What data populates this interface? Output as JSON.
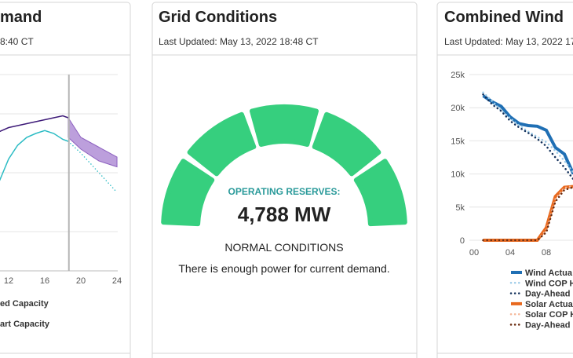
{
  "left": {
    "title": "mand",
    "updated": "8:40 CT",
    "chart": {
      "x": [
        11,
        12,
        13,
        14,
        15,
        16,
        17,
        18,
        18.6
      ],
      "demand": {
        "color": "#3d1a78",
        "values": [
          71,
          73,
          74,
          75,
          76,
          77,
          78,
          79,
          78
        ]
      },
      "capacity": {
        "color": "#2cbcc4",
        "values": [
          46,
          57,
          64,
          68,
          70,
          71.5,
          70,
          67,
          66
        ]
      },
      "forecast_x": [
        18.6,
        20,
        22,
        24
      ],
      "forecast": {
        "color": "#2cbcc4",
        "values": [
          66,
          60,
          50,
          40
        ]
      },
      "band": {
        "color": "#a57fd0",
        "high": [
          78,
          68,
          63,
          58
        ],
        "low": [
          68,
          62,
          56,
          53
        ]
      },
      "now": 18.67,
      "xlim": [
        11.04,
        24.3
      ],
      "ylim": [
        0,
        100
      ],
      "xticks": [
        12,
        16,
        20,
        24
      ]
    },
    "legend": [
      "ed Capacity",
      "art Capacity"
    ]
  },
  "center": {
    "title": "Grid Conditions",
    "updated": "Last Updated: May 13, 2022 18:48 CT",
    "label": "OPERATING RESERVES:",
    "value": "4,788 MW",
    "status": "NORMAL CONDITIONS",
    "message": "There is enough power for current demand."
  },
  "right": {
    "title": "Combined Wind",
    "updated": "Last Updated: May 13, 2022 17",
    "chart": {
      "x": [
        1,
        2,
        3,
        4,
        5,
        6,
        7,
        8,
        9,
        10,
        11
      ],
      "xlim": [
        0,
        12
      ],
      "ylim": [
        0,
        25000
      ],
      "yticks": [
        {
          "value": 0,
          "label": "0"
        },
        {
          "value": 5000,
          "label": "5k"
        },
        {
          "value": 10000,
          "label": "10k"
        },
        {
          "value": 15000,
          "label": "15k"
        },
        {
          "value": 20000,
          "label": "20k"
        },
        {
          "value": 25000,
          "label": "25k"
        }
      ],
      "xticks": [
        {
          "value": 0,
          "label": "00"
        },
        {
          "value": 4,
          "label": "04"
        },
        {
          "value": 8,
          "label": "08"
        }
      ],
      "series": [
        {
          "name": "Wind Actua",
          "color": "#1f6fb4",
          "dotted": false,
          "values": [
            21800,
            20900,
            20200,
            18600,
            17600,
            17300,
            17200,
            16600,
            14000,
            13000,
            10000
          ]
        },
        {
          "name": "Wind COP H",
          "color": "#9ccbe8",
          "dotted": true,
          "values": [
            22300,
            21000,
            19600,
            18400,
            17300,
            16400,
            15600,
            14800,
            13500,
            12000,
            10200
          ]
        },
        {
          "name": "Day-Ahead",
          "color": "#13315c",
          "dotted": true,
          "values": [
            22000,
            20500,
            19500,
            18000,
            17000,
            16200,
            15300,
            14200,
            12500,
            11000,
            9200
          ]
        },
        {
          "name": "Solar Actua",
          "color": "#e8691e",
          "dotted": false,
          "values": [
            0,
            0,
            0,
            0,
            0,
            0,
            0,
            1900,
            6600,
            8000,
            8100
          ]
        },
        {
          "name": "Solar COP H",
          "color": "#f6b89a",
          "dotted": true,
          "values": [
            0,
            0,
            0,
            0,
            0,
            0,
            0,
            1500,
            6200,
            7900,
            8200
          ]
        },
        {
          "name": "Day-Ahead",
          "color": "#6b2c10",
          "dotted": true,
          "values": [
            0,
            0,
            0,
            0,
            0,
            0,
            0,
            1200,
            5800,
            7600,
            8000
          ]
        }
      ]
    }
  }
}
